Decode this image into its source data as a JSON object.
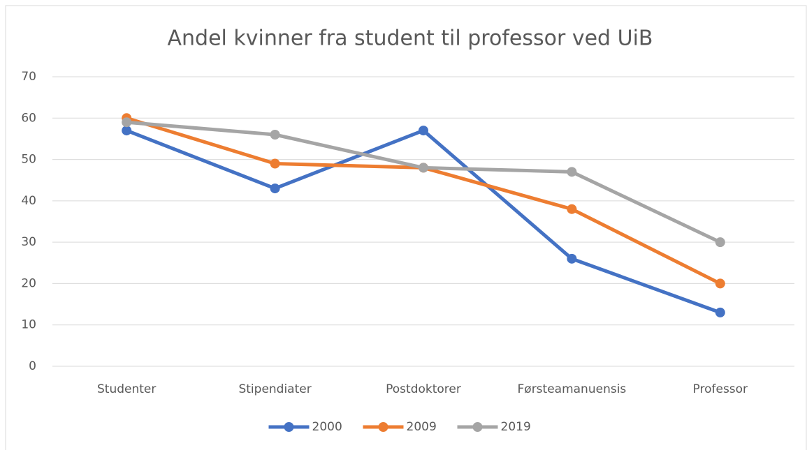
{
  "chart_data": {
    "type": "line",
    "title": "Andel kvinner fra student til professor ved UiB",
    "categories": [
      "Studenter",
      "Stipendiater",
      "Postdoktorer",
      "Førsteamanuensis",
      "Professor"
    ],
    "series": [
      {
        "name": "2000",
        "color": "#4472c4",
        "values": [
          57,
          43,
          57,
          26,
          13
        ]
      },
      {
        "name": "2009",
        "color": "#ed7d31",
        "values": [
          60,
          49,
          48,
          38,
          20
        ]
      },
      {
        "name": "2019",
        "color": "#a5a5a5",
        "values": [
          59,
          56,
          48,
          47,
          30
        ]
      }
    ],
    "ylim": [
      0,
      70
    ],
    "yticks": [
      0,
      10,
      20,
      30,
      40,
      50,
      60,
      70
    ],
    "grid": true,
    "legend": "bottom"
  }
}
